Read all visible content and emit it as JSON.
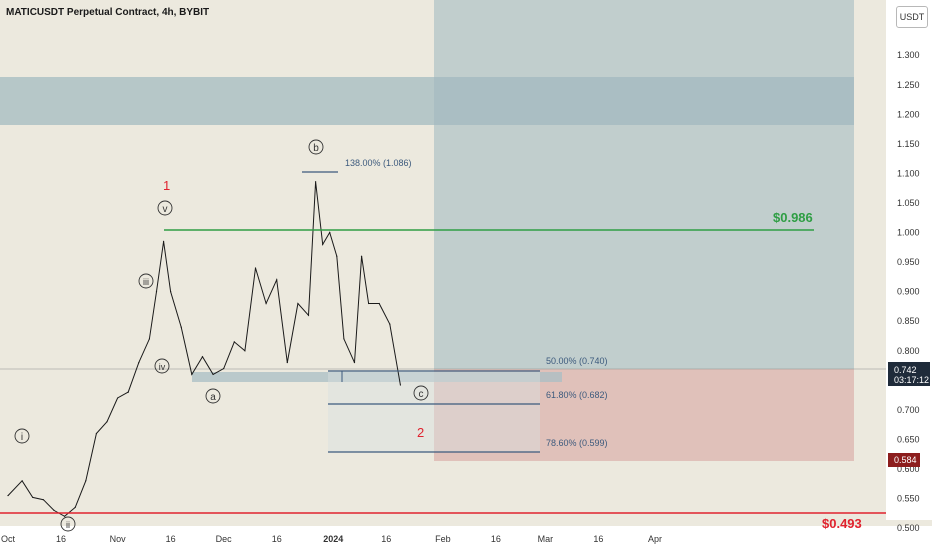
{
  "header": {
    "title": "MATICUSDT Perpetual Contract, 4h, BYBIT",
    "unit_button": "USDT"
  },
  "colors": {
    "background": "#ece9de",
    "price_line": "#1a1a1a",
    "resistance_line": "#2f9e44",
    "support_line": "#e0222e",
    "target_box": "#9fb8bf",
    "stop_box": "#d9a6a2",
    "fib_line": "#3c5a7d",
    "wave_red": "#e0222e"
  },
  "chart_data": {
    "type": "line",
    "title": "MATICUSDT Perpetual Contract, 4h, BYBIT",
    "xlabel": "",
    "ylabel": "",
    "ylim": [
      0.49,
      1.39
    ],
    "x_ticks": [
      "Oct",
      "16",
      "Nov",
      "16",
      "Dec",
      "16",
      "2024",
      "16",
      "Feb",
      "16",
      "Mar",
      "16",
      "Apr"
    ],
    "y_ticks": [
      "1.300",
      "1.250",
      "1.200",
      "1.150",
      "1.100",
      "1.050",
      "1.000",
      "0.950",
      "0.900",
      "0.850",
      "0.800",
      "0.700",
      "0.650",
      "0.600",
      "0.550",
      "0.500"
    ],
    "grid": false,
    "series": [
      {
        "x": [
          "2023-10-01",
          "2023-10-05",
          "2023-10-08",
          "2023-10-11",
          "2023-10-14",
          "2023-10-17",
          "2023-10-20",
          "2023-10-23",
          "2023-10-26",
          "2023-10-29",
          "2023-11-01",
          "2023-11-04",
          "2023-11-07",
          "2023-11-10",
          "2023-11-12",
          "2023-11-14",
          "2023-11-16",
          "2023-11-19",
          "2023-11-22",
          "2023-11-25",
          "2023-11-28",
          "2023-12-01",
          "2023-12-04",
          "2023-12-07",
          "2023-12-10",
          "2023-12-13",
          "2023-12-16",
          "2023-12-19",
          "2023-12-22",
          "2023-12-25",
          "2023-12-27",
          "2023-12-29",
          "2023-12-31",
          "2024-01-02",
          "2024-01-04",
          "2024-01-07",
          "2024-01-09",
          "2024-01-11",
          "2024-01-14",
          "2024-01-17",
          "2024-01-20"
        ],
        "values": [
          0.555,
          0.58,
          0.552,
          0.548,
          0.53,
          0.52,
          0.535,
          0.58,
          0.66,
          0.68,
          0.72,
          0.73,
          0.78,
          0.82,
          0.9,
          0.985,
          0.9,
          0.84,
          0.76,
          0.79,
          0.76,
          0.77,
          0.815,
          0.8,
          0.94,
          0.88,
          0.92,
          0.78,
          0.88,
          0.86,
          1.086,
          0.98,
          1.0,
          0.96,
          0.82,
          0.78,
          0.96,
          0.88,
          0.88,
          0.845,
          0.742
        ]
      }
    ],
    "annotations": {
      "resistance_label": "$0.986",
      "resistance_value": 0.986,
      "support_value": 0.493,
      "support_label": "$0.493",
      "current_price": "0.742",
      "countdown": "03:17:12",
      "stop_price": "0.584",
      "fib_upper": "138.00% (1.086)",
      "fib_levels": [
        {
          "label": "50.00% (0.740)",
          "value": 0.74
        },
        {
          "label": "61.80% (0.682)",
          "value": 0.682
        },
        {
          "label": "78.60% (0.599)",
          "value": 0.599
        }
      ],
      "wave_labels": {
        "i": "i",
        "ii": "ii",
        "iii": "iii",
        "iv": "iv",
        "v": "v",
        "a": "a",
        "b": "b",
        "c": "c",
        "red_1": "1",
        "red_2": "2"
      }
    }
  }
}
